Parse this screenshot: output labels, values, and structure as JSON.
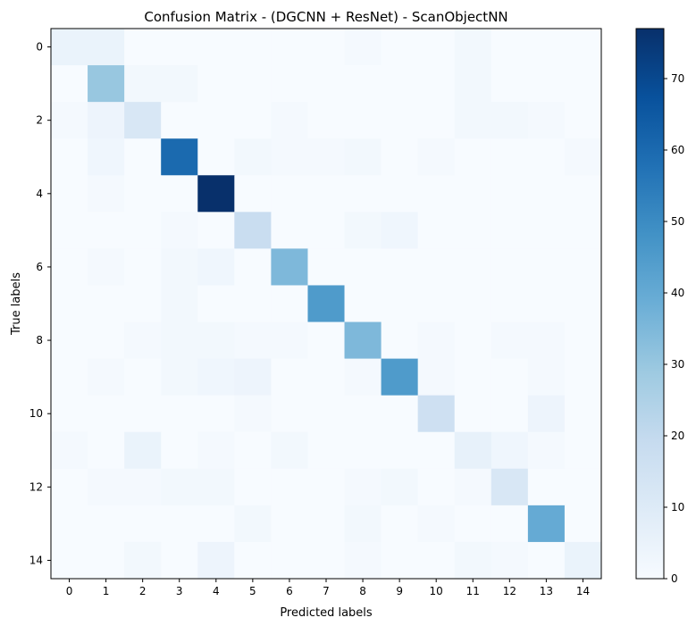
{
  "chart_data": {
    "type": "heatmap",
    "title": "Confusion Matrix - (DGCNN + ResNet) - ScanObjectNN",
    "xlabel": "Predicted labels",
    "ylabel": "True labels",
    "x_tick_labels": [
      "0",
      "1",
      "2",
      "3",
      "4",
      "5",
      "6",
      "7",
      "8",
      "9",
      "10",
      "11",
      "12",
      "13",
      "14"
    ],
    "y_tick_labels": [
      "0",
      "2",
      "4",
      "6",
      "8",
      "10",
      "12",
      "14"
    ],
    "colorbar": {
      "colormap": "Blues",
      "range": [
        0,
        77
      ],
      "tick_values": [
        0,
        10,
        20,
        30,
        40,
        50,
        60,
        70
      ]
    },
    "rows": [
      "0",
      "1",
      "2",
      "3",
      "4",
      "5",
      "6",
      "7",
      "8",
      "9",
      "10",
      "11",
      "12",
      "13",
      "14"
    ],
    "cols": [
      "0",
      "1",
      "2",
      "3",
      "4",
      "5",
      "6",
      "7",
      "8",
      "9",
      "10",
      "11",
      "12",
      "13",
      "14"
    ],
    "matrix": [
      [
        5,
        5,
        0,
        0,
        0,
        0,
        0,
        0,
        1,
        0,
        0,
        2,
        0,
        0,
        0
      ],
      [
        0,
        30,
        2,
        2,
        0,
        0,
        0,
        0,
        0,
        0,
        0,
        2,
        0,
        0,
        0
      ],
      [
        1,
        4,
        12,
        0,
        0,
        0,
        1,
        0,
        0,
        0,
        0,
        2,
        2,
        1,
        0
      ],
      [
        0,
        3,
        0,
        60,
        0,
        2,
        1,
        1,
        2,
        0,
        1,
        0,
        0,
        0,
        1
      ],
      [
        0,
        1,
        0,
        0,
        77,
        0,
        0,
        0,
        0,
        0,
        0,
        0,
        0,
        0,
        0
      ],
      [
        0,
        0,
        0,
        1,
        0,
        18,
        0,
        0,
        2,
        3,
        0,
        0,
        0,
        0,
        0
      ],
      [
        0,
        1,
        0,
        2,
        3,
        0,
        35,
        0,
        0,
        0,
        0,
        0,
        0,
        0,
        0
      ],
      [
        0,
        0,
        0,
        2,
        0,
        0,
        0,
        45,
        0,
        0,
        0,
        0,
        0,
        0,
        0
      ],
      [
        0,
        0,
        1,
        2,
        2,
        1,
        1,
        0,
        35,
        0,
        1,
        0,
        1,
        1,
        0
      ],
      [
        0,
        1,
        0,
        2,
        3,
        4,
        0,
        0,
        1,
        45,
        1,
        0,
        0,
        1,
        0
      ],
      [
        0,
        0,
        0,
        0,
        0,
        1,
        0,
        0,
        0,
        0,
        16,
        0,
        0,
        4,
        0
      ],
      [
        1,
        0,
        5,
        0,
        1,
        0,
        2,
        0,
        0,
        0,
        0,
        6,
        3,
        1,
        0
      ],
      [
        0,
        1,
        1,
        2,
        2,
        0,
        0,
        0,
        1,
        2,
        0,
        1,
        12,
        0,
        0
      ],
      [
        0,
        0,
        0,
        0,
        0,
        2,
        0,
        0,
        2,
        0,
        1,
        0,
        0,
        40,
        0
      ],
      [
        0,
        0,
        2,
        0,
        4,
        0,
        0,
        0,
        1,
        0,
        0,
        2,
        1,
        0,
        5
      ]
    ]
  }
}
